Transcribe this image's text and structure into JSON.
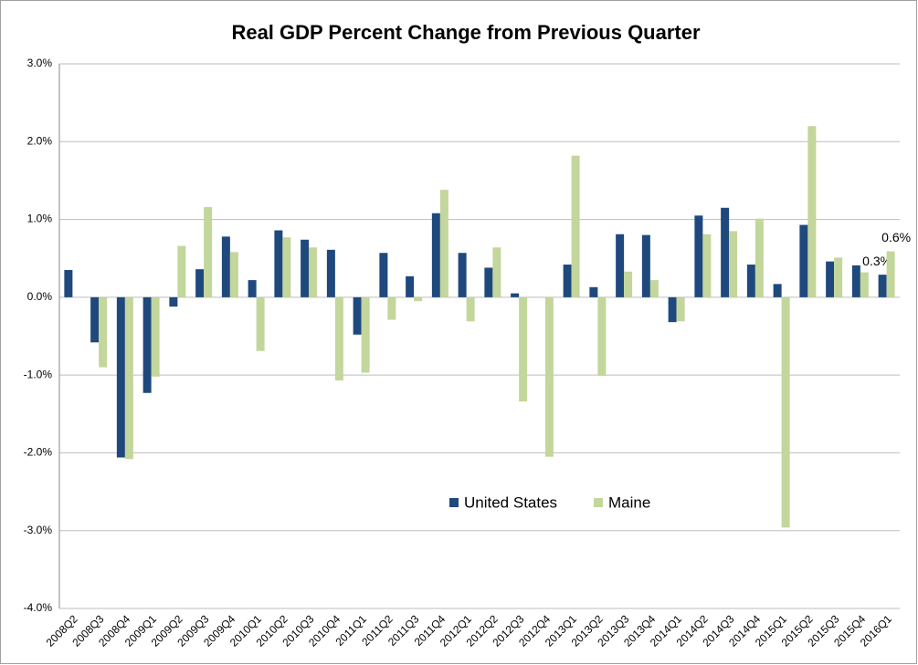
{
  "chart_data": {
    "type": "bar",
    "title": "Real GDP Percent Change from Previous Quarter",
    "categories": [
      "2008Q2",
      "2008Q3",
      "2008Q4",
      "2009Q1",
      "2009Q2",
      "2009Q3",
      "2009Q4",
      "2010Q1",
      "2010Q2",
      "2010Q3",
      "2010Q4",
      "2011Q1",
      "2011Q2",
      "2011Q3",
      "2011Q4",
      "2012Q1",
      "2012Q2",
      "2012Q3",
      "2012Q4",
      "2013Q1",
      "2013Q2",
      "2013Q3",
      "2013Q4",
      "2014Q1",
      "2014Q2",
      "2014Q3",
      "2014Q4",
      "2015Q1",
      "2015Q2",
      "2015Q3",
      "2015Q4",
      "2016Q1"
    ],
    "series": [
      {
        "name": "United States",
        "color": "#1f497d",
        "label_color": "#1f497d",
        "values": [
          0.35,
          -0.58,
          -2.06,
          -1.23,
          -0.12,
          0.36,
          0.78,
          0.22,
          0.86,
          0.74,
          0.61,
          -0.48,
          0.57,
          0.27,
          1.08,
          0.57,
          0.38,
          0.05,
          0.0,
          0.42,
          0.13,
          0.81,
          0.8,
          -0.32,
          1.05,
          1.15,
          0.42,
          0.17,
          0.93,
          0.46,
          0.41,
          0.29
        ],
        "value_labels": [
          null,
          null,
          null,
          null,
          null,
          null,
          null,
          null,
          null,
          null,
          null,
          null,
          null,
          null,
          null,
          null,
          null,
          null,
          null,
          null,
          null,
          null,
          null,
          null,
          null,
          null,
          null,
          null,
          null,
          null,
          null,
          "0.3%"
        ]
      },
      {
        "name": "Maine",
        "color": "#c3d69b",
        "label_color": "#77933c",
        "values": [
          0.0,
          -0.9,
          -2.08,
          -1.02,
          0.66,
          1.16,
          0.58,
          -0.69,
          0.77,
          0.64,
          -1.07,
          -0.97,
          -0.29,
          -0.05,
          1.38,
          -0.31,
          0.64,
          -1.34,
          -2.05,
          1.82,
          -1.01,
          0.33,
          0.22,
          -0.31,
          0.81,
          0.85,
          1.01,
          -2.96,
          2.2,
          0.51,
          0.32,
          0.59
        ],
        "value_labels": [
          null,
          null,
          null,
          null,
          null,
          null,
          null,
          null,
          null,
          null,
          null,
          null,
          null,
          null,
          null,
          null,
          null,
          null,
          null,
          null,
          null,
          null,
          null,
          null,
          null,
          null,
          null,
          null,
          null,
          null,
          null,
          "0.6%"
        ]
      }
    ],
    "ylim": [
      -4,
      3
    ],
    "yticks": [
      {
        "value": -4,
        "label": "-4.0%"
      },
      {
        "value": -3,
        "label": "-3.0%"
      },
      {
        "value": -2,
        "label": "-2.0%"
      },
      {
        "value": -1,
        "label": "-1.0%"
      },
      {
        "value": 0,
        "label": "0.0%"
      },
      {
        "value": 1,
        "label": "1.0%"
      },
      {
        "value": 2,
        "label": "2.0%"
      },
      {
        "value": 3,
        "label": "3.0%"
      }
    ],
    "grid": true
  }
}
